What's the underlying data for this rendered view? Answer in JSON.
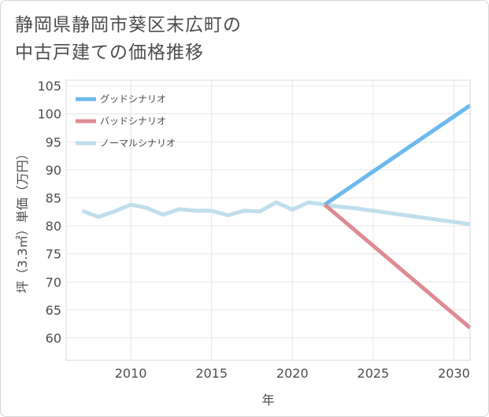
{
  "title_lines": [
    "静岡県静岡市葵区末広町の",
    "中古戸建ての価格推移"
  ],
  "chart_data": {
    "type": "line",
    "xlabel": "年",
    "ylabel": "坪（3.3㎡）単価（万円）",
    "xlim": [
      2006,
      2031
    ],
    "ylim": [
      56,
      106
    ],
    "xticks": [
      2010,
      2015,
      2020,
      2025,
      2030
    ],
    "yticks": [
      60,
      65,
      70,
      75,
      80,
      85,
      90,
      95,
      100,
      105
    ],
    "grid": true,
    "legend_position": "top-left",
    "series": [
      {
        "name": "グッドシナリオ",
        "color": "#6cb9ee",
        "x": [
          2022,
          2031
        ],
        "y": [
          83.8,
          101.5
        ]
      },
      {
        "name": "バッドシナリオ",
        "color": "#de8b93",
        "x": [
          2022,
          2031
        ],
        "y": [
          83.8,
          61.8
        ]
      },
      {
        "name": "ノーマルシナリオ",
        "color": "#bfdeec",
        "x": [
          2007,
          2008,
          2009,
          2010,
          2011,
          2012,
          2013,
          2014,
          2015,
          2016,
          2017,
          2018,
          2019,
          2020,
          2021,
          2022,
          2023,
          2024,
          2025,
          2026,
          2027,
          2028,
          2029,
          2030,
          2031
        ],
        "y": [
          82.7,
          81.6,
          82.6,
          83.8,
          83.2,
          82.0,
          83.0,
          82.7,
          82.7,
          81.9,
          82.7,
          82.6,
          84.2,
          82.9,
          84.2,
          83.8,
          83.4,
          83.1,
          82.7,
          82.3,
          81.9,
          81.5,
          81.1,
          80.7,
          80.3
        ]
      }
    ]
  }
}
